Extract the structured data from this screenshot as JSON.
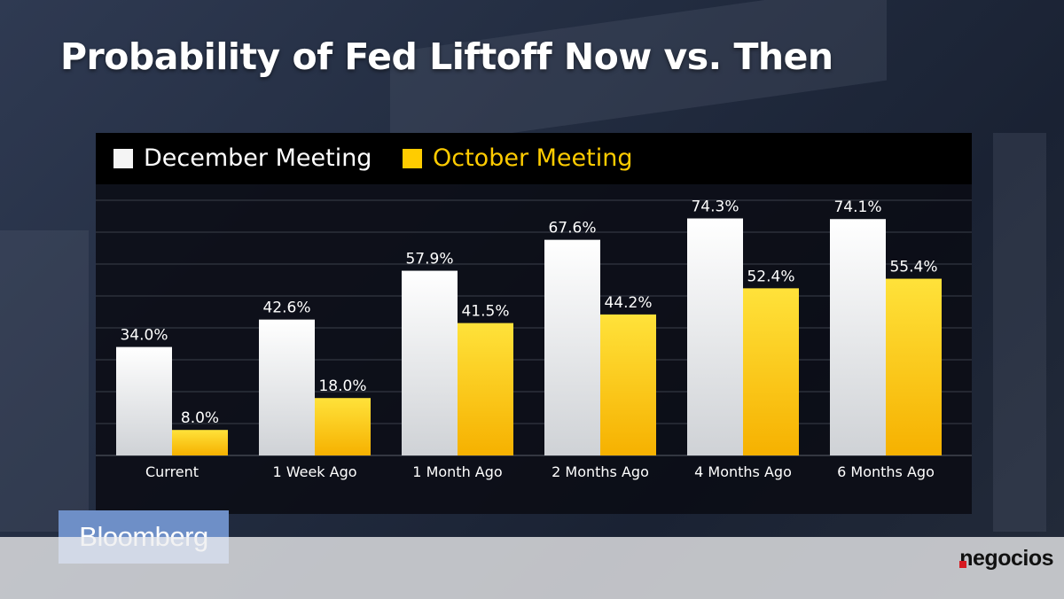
{
  "title": "Probability of Fed Liftoff Now vs. Then",
  "colors": {
    "december": "#f4f4f4",
    "october": "#ffcc00",
    "label": "#ffffff"
  },
  "legend": {
    "december_label": "December Meeting",
    "october_label": "October Meeting"
  },
  "chart_data": {
    "type": "bar",
    "title": "Probability of Fed Liftoff Now vs. Then",
    "xlabel": "",
    "ylabel": "",
    "ylim": [
      0,
      85
    ],
    "grid": true,
    "legend_position": "top-left",
    "categories": [
      "Current",
      "1 Week Ago",
      "1 Month Ago",
      "2 Months Ago",
      "4 Months Ago",
      "6 Months Ago"
    ],
    "series": [
      {
        "name": "December Meeting",
        "values": [
          34.0,
          42.6,
          57.9,
          67.6,
          74.3,
          74.1
        ],
        "labels": [
          "34.0%",
          "42.6%",
          "57.9%",
          "67.6%",
          "74.3%",
          "74.1%"
        ]
      },
      {
        "name": "October Meeting",
        "values": [
          8.0,
          18.0,
          41.5,
          44.2,
          52.4,
          55.4
        ],
        "labels": [
          "8.0%",
          "18.0%",
          "41.5%",
          "44.2%",
          "52.4%",
          "55.4%"
        ]
      }
    ]
  },
  "branding": {
    "left_logo": "Bloomberg",
    "right_logo": "negocios"
  }
}
